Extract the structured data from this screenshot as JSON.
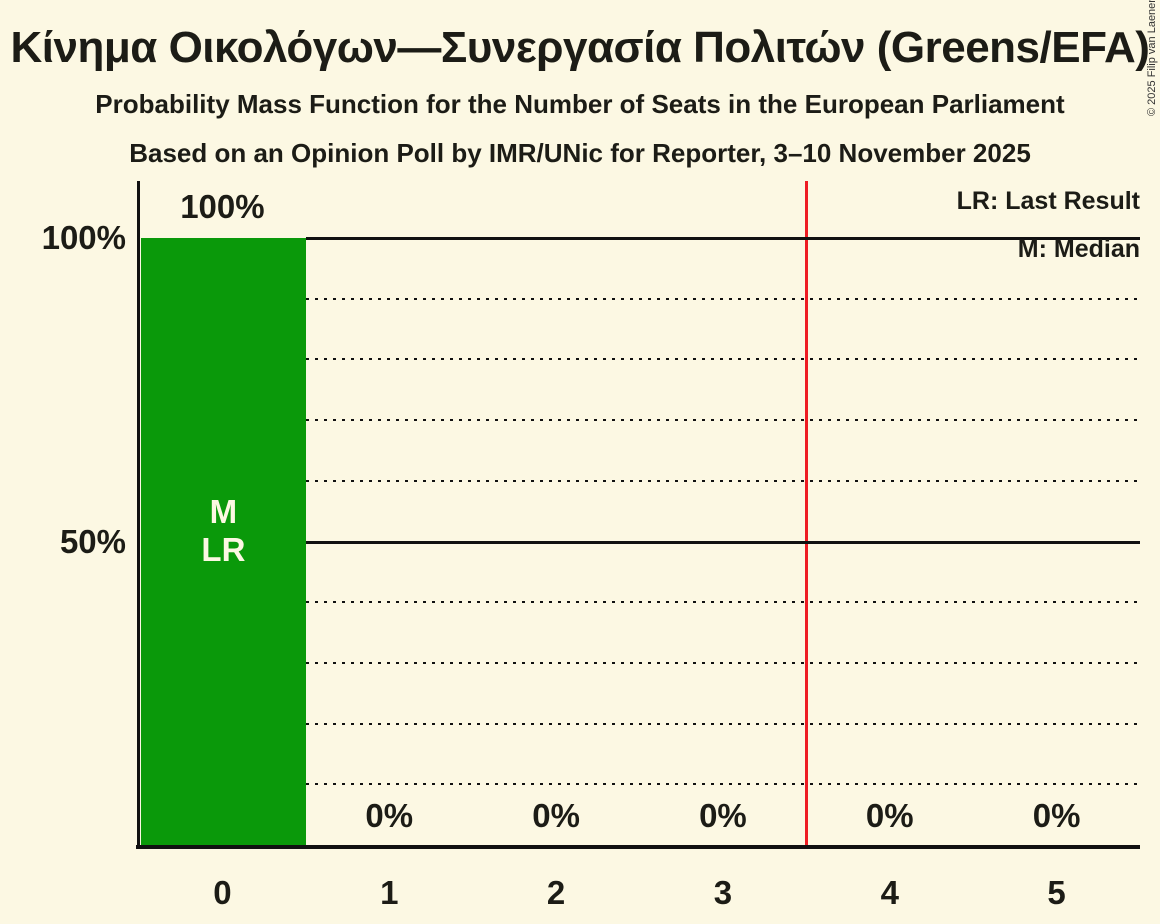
{
  "title": "Κίνημα Οικολόγων—Συνεργασία Πολιτών (Greens/EFA)",
  "subtitle_line1": "Probability Mass Function for the Number of Seats in the European Parliament",
  "subtitle_line2": "Based on an Opinion Poll by IMR/UNic for Reporter, 3–10 November 2025",
  "copyright": "© 2025 Filip van Laenen",
  "legend": {
    "last_result": "LR: Last Result",
    "median": "M: Median"
  },
  "colors": {
    "background": "#fcf8e3",
    "bar_green": "#0a990a",
    "red_line": "#ee1c23",
    "line_black": "#111111",
    "text": "#1c1c16",
    "bar_inner_text": "#fcf8e3"
  },
  "chart_data": {
    "type": "bar",
    "title": "Probability Mass Function for the Number of Seats in the European Parliament",
    "categories": [
      "0",
      "1",
      "2",
      "3",
      "4",
      "5"
    ],
    "values": [
      100,
      0,
      0,
      0,
      0,
      0
    ],
    "value_labels": [
      "100%",
      "0%",
      "0%",
      "0%",
      "0%",
      "0%"
    ],
    "ylim": [
      0,
      100
    ],
    "y_ticks": [
      {
        "label": "100%",
        "value": 100
      },
      {
        "label": "50%",
        "value": 50
      }
    ],
    "solid_gridlines": [
      100,
      50
    ],
    "dotted_gridlines": [
      90,
      80,
      70,
      60,
      40,
      30,
      20,
      10
    ],
    "red_line_at_category_boundary": 4,
    "median_category": "0",
    "last_result_category": "0",
    "bar_inner_labels": [
      "M",
      "LR"
    ],
    "legend_position": "top-right",
    "grid": "horizontal every 10%"
  }
}
